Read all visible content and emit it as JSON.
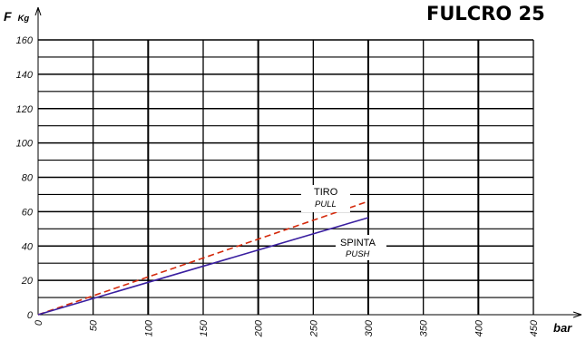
{
  "chart_data": {
    "type": "line",
    "title": "FULCRO 25",
    "ylabel_main": "F",
    "ylabel_unit": "Kg",
    "xlabel": "bar",
    "xlim": [
      0,
      450
    ],
    "ylim": [
      0,
      160
    ],
    "x_ticks": [
      "0",
      "50",
      "100",
      "150",
      "200",
      "250",
      "300",
      "350",
      "400",
      "450"
    ],
    "y_ticks": [
      "0",
      "20",
      "40",
      "60",
      "80",
      "100",
      "120",
      "140",
      "160"
    ],
    "grid": true,
    "series": [
      {
        "name": "TIRO",
        "subname": "PULL",
        "style": "dashed",
        "color": "#d42a0c",
        "x": [
          0,
          300
        ],
        "y": [
          0,
          66
        ]
      },
      {
        "name": "SPINTA",
        "subname": "PUSH",
        "style": "solid",
        "color": "#3a1fa0",
        "x": [
          0,
          300
        ],
        "y": [
          0,
          56.5
        ]
      }
    ]
  }
}
